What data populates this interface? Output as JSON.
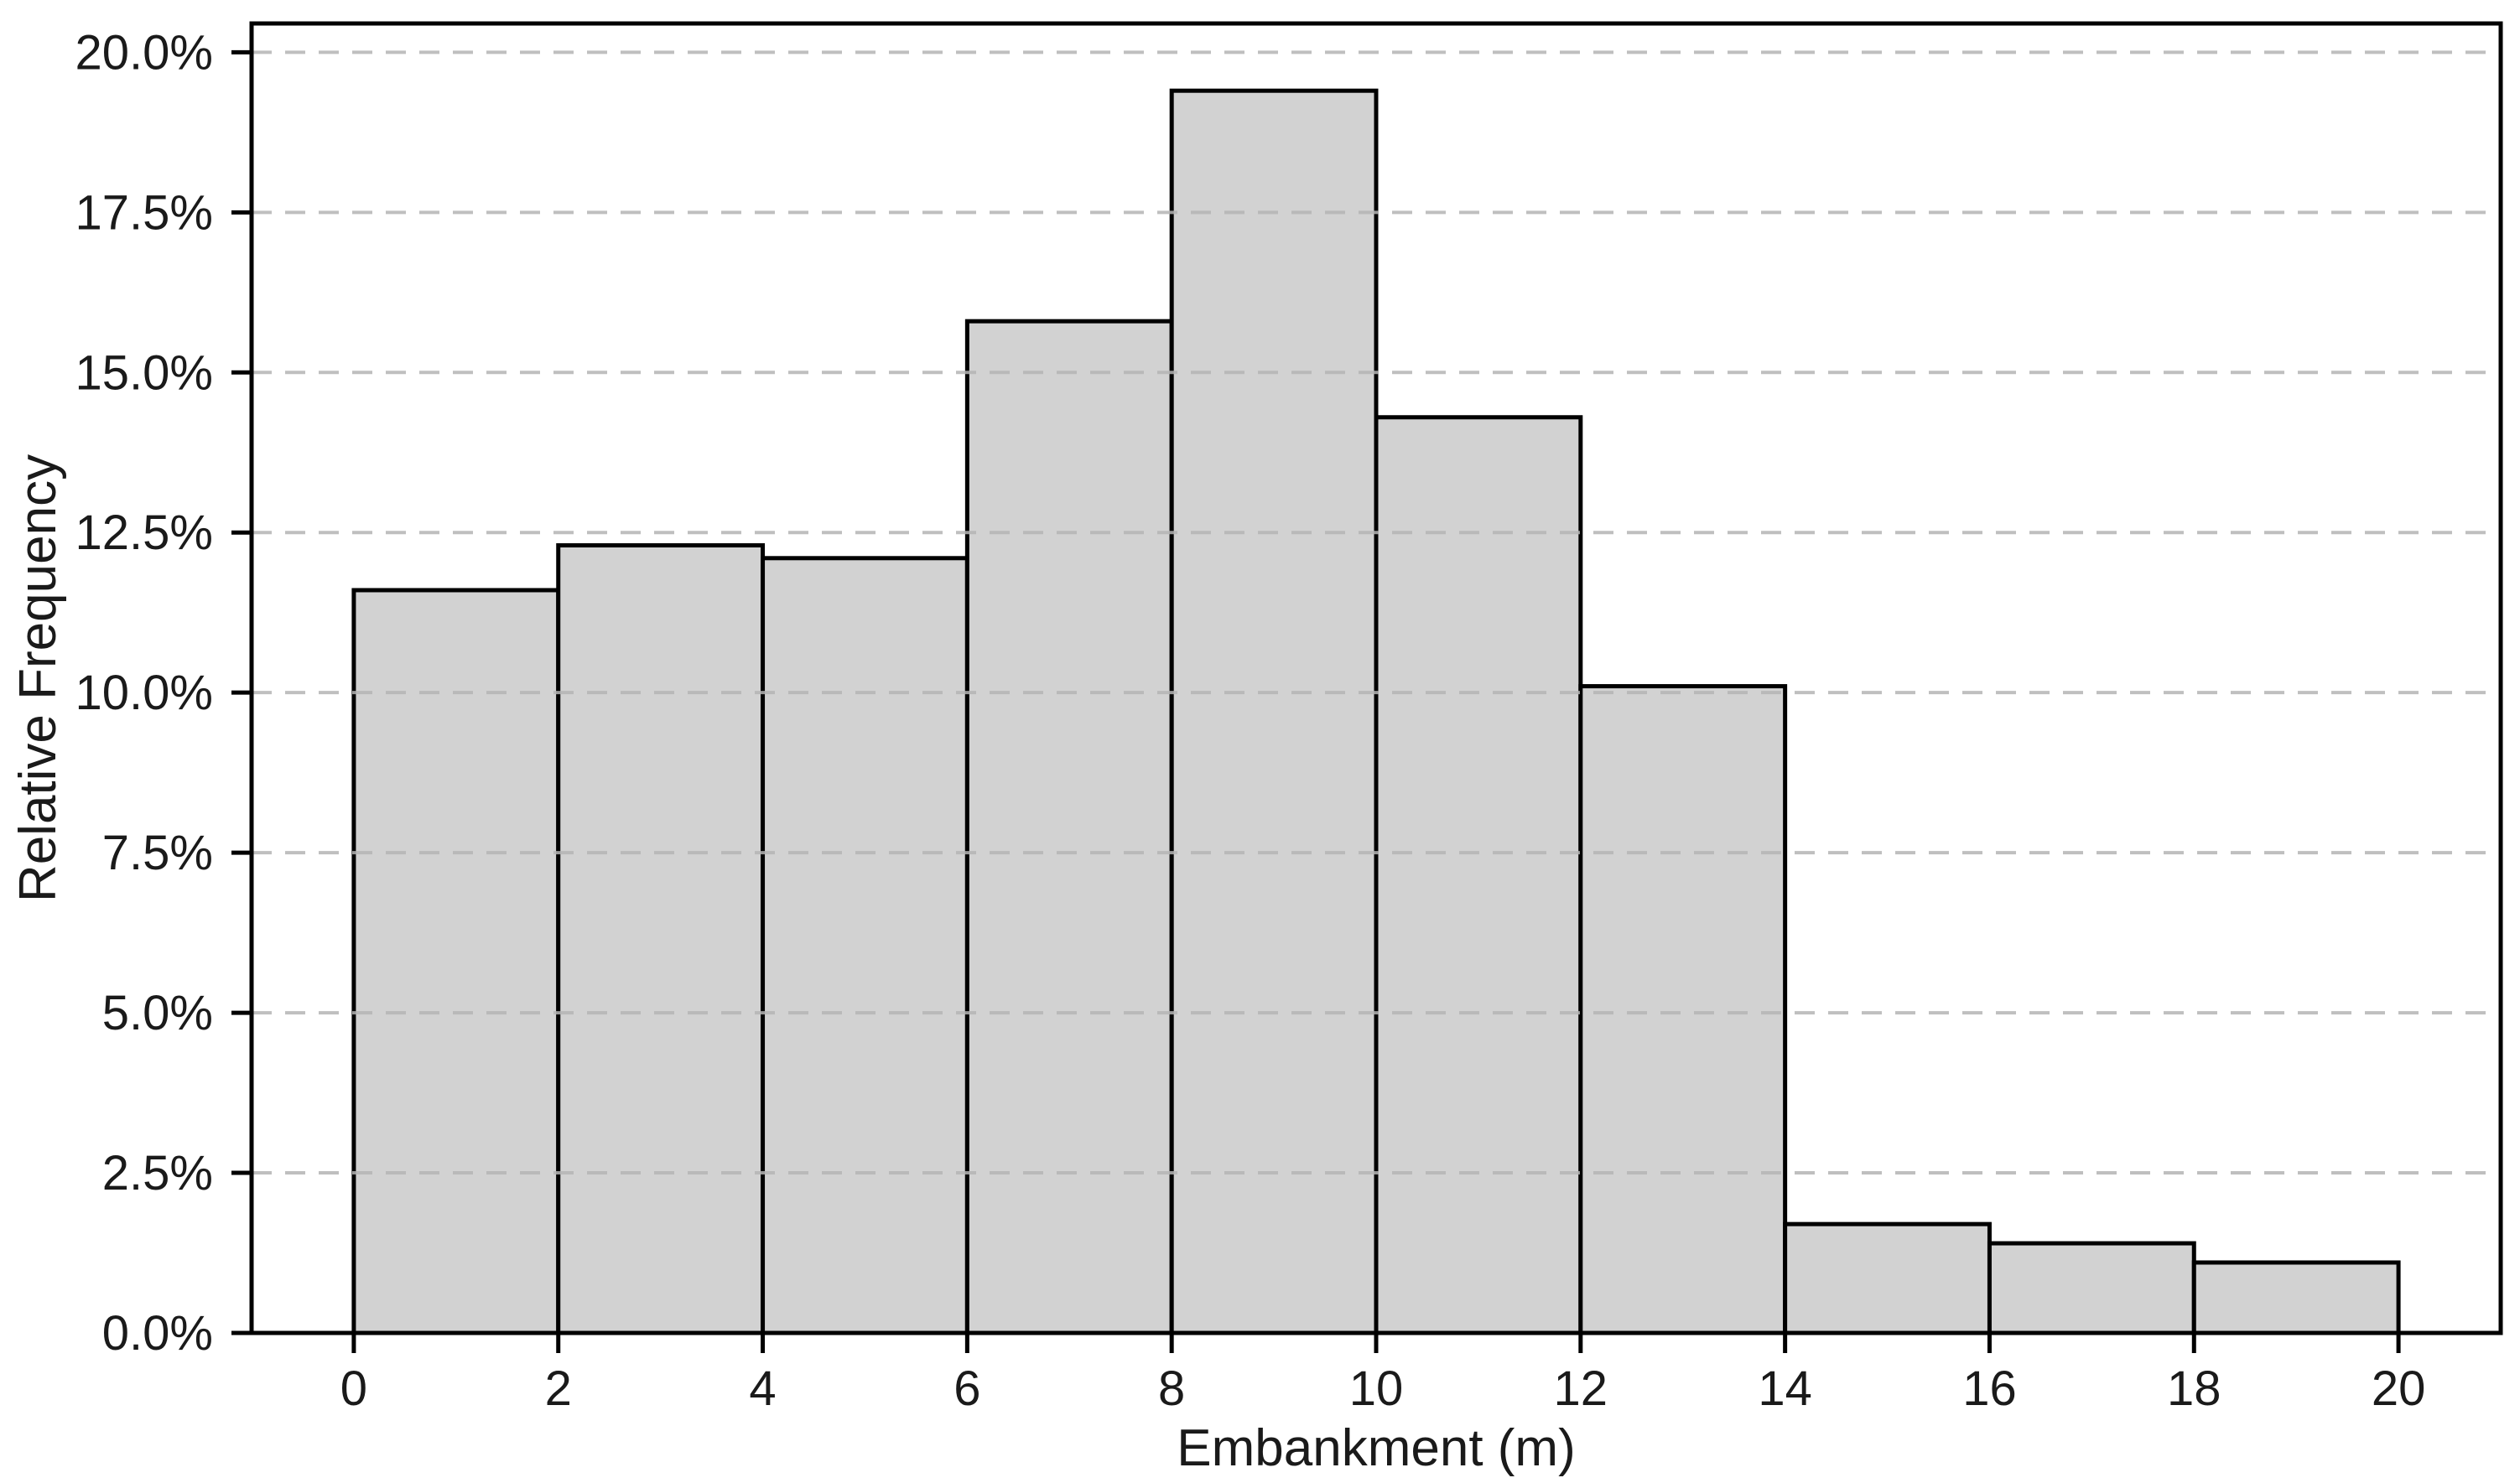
{
  "figure": {
    "background": "#ffffff"
  },
  "chart_data": {
    "type": "bar",
    "subtype": "histogram",
    "title": "",
    "xlabel": "Embankment (m)",
    "ylabel": "Relative Frequency",
    "bin_edges": [
      0,
      2,
      4,
      6,
      8,
      10,
      12,
      14,
      16,
      18,
      20
    ],
    "categories": [
      "0-2",
      "2-4",
      "4-6",
      "6-8",
      "8-10",
      "10-12",
      "12-14",
      "14-16",
      "16-18",
      "18-20"
    ],
    "values_percent": [
      11.6,
      12.3,
      12.1,
      15.8,
      19.4,
      14.3,
      10.1,
      1.7,
      1.4,
      1.1
    ],
    "x_tick_values": [
      0,
      2,
      4,
      6,
      8,
      10,
      12,
      14,
      16,
      18,
      20
    ],
    "x_tick_labels": [
      "0",
      "2",
      "4",
      "6",
      "8",
      "10",
      "12",
      "14",
      "16",
      "18",
      "20"
    ],
    "y_tick_values": [
      0,
      2.5,
      5,
      7.5,
      10,
      12.5,
      15,
      17.5,
      20
    ],
    "y_tick_labels": [
      "0.0%",
      "2.5%",
      "5.0%",
      "7.5%",
      "10.0%",
      "12.5%",
      "15.0%",
      "17.5%",
      "20.0%"
    ],
    "xlim": [
      -1,
      21
    ],
    "ylim": [
      0,
      20.45
    ],
    "grid": "horizontal-dashed",
    "legend_position": "none",
    "colors": {
      "bar_fill": "#d2d2d2",
      "bar_edge": "#000000",
      "grid": "#b5b5b5",
      "spine": "#000000",
      "text": "#1a1a1a"
    }
  }
}
